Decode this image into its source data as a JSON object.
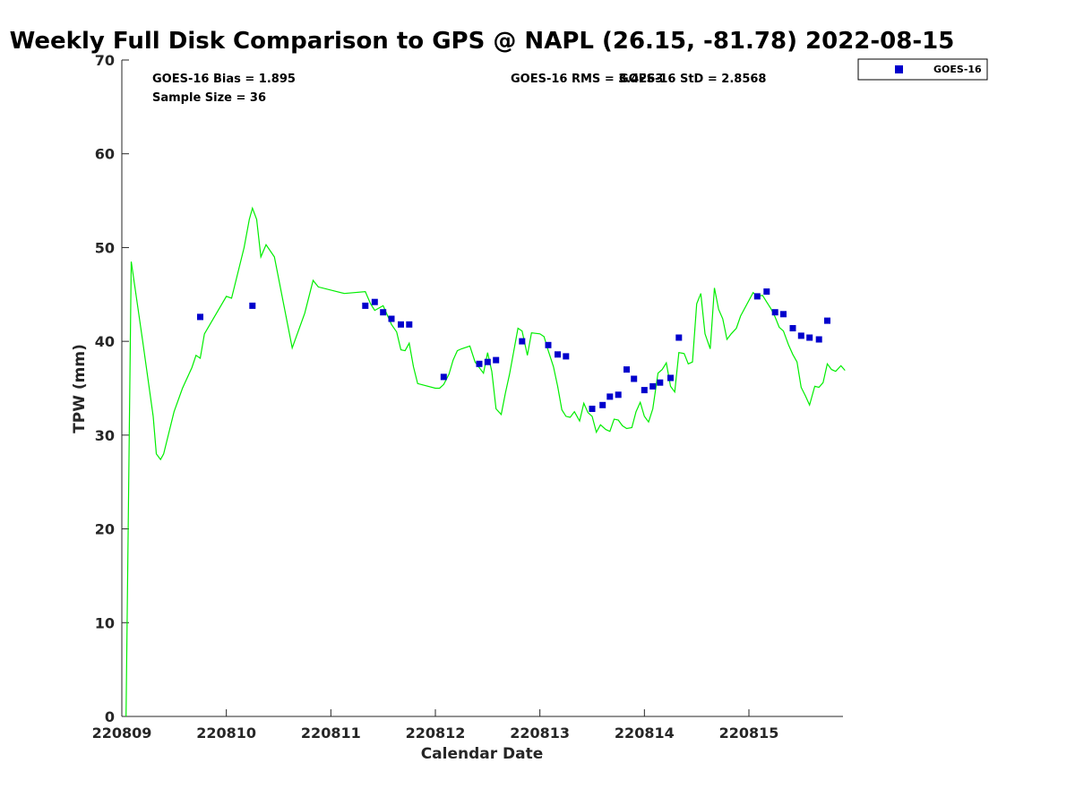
{
  "chart_data": {
    "type": "scatter",
    "title": "Weekly Full Disk Comparison to GPS @ NAPL (26.15, -81.78) 2022-08-15",
    "xlabel": "Calendar Date",
    "ylabel": "TPW (mm)",
    "xlim": [
      220809,
      220815.9
    ],
    "ylim": [
      0,
      70
    ],
    "x_ticks": [
      {
        "value": 220809,
        "label": "220809"
      },
      {
        "value": 220810,
        "label": "220810"
      },
      {
        "value": 220811,
        "label": "220811"
      },
      {
        "value": 220812,
        "label": "220812"
      },
      {
        "value": 220813,
        "label": "220813"
      },
      {
        "value": 220814,
        "label": "220814"
      },
      {
        "value": 220815,
        "label": "220815"
      }
    ],
    "y_ticks": [
      0,
      10,
      20,
      30,
      40,
      50,
      60,
      70
    ],
    "grid": false,
    "legend_position": "top-right",
    "annotations": {
      "bias": "GOES-16 Bias = 1.895",
      "sample": "Sample Size = 36",
      "rms": "GOES-16 RMS = 3.4263",
      "std": "GOES-16 StD = 2.8568"
    },
    "series": [
      {
        "name": "GOES-16",
        "kind": "scatter",
        "color": "#0000cc",
        "x": [
          220809.75,
          220810.25,
          220811.33,
          220811.42,
          220811.5,
          220811.58,
          220811.67,
          220811.75,
          220812.08,
          220812.42,
          220812.5,
          220812.58,
          220812.83,
          220813.08,
          220813.17,
          220813.25,
          220813.5,
          220813.6,
          220813.67,
          220813.75,
          220813.83,
          220813.9,
          220814.0,
          220814.08,
          220814.15,
          220814.25,
          220814.33,
          220815.08,
          220815.17,
          220815.25,
          220815.33,
          220815.42,
          220815.5,
          220815.58,
          220815.67,
          220815.75
        ],
        "y": [
          42.6,
          43.8,
          43.8,
          44.2,
          43.1,
          42.4,
          41.8,
          41.8,
          36.2,
          37.6,
          37.8,
          38.0,
          40.0,
          39.6,
          38.6,
          38.4,
          32.8,
          33.2,
          34.1,
          34.3,
          37.0,
          36.0,
          34.8,
          35.2,
          35.6,
          36.1,
          40.4,
          44.8,
          45.3,
          43.1,
          42.9,
          41.4,
          40.6,
          40.4,
          40.2,
          42.2
        ]
      },
      {
        "name": "GPS",
        "kind": "line",
        "color": "#00ee00",
        "x": [
          220809.04,
          220809.09,
          220809.2,
          220809.3,
          220809.33,
          220809.37,
          220809.4,
          220809.5,
          220809.58,
          220809.67,
          220809.71,
          220809.75,
          220809.79,
          220810.0,
          220810.05,
          220810.17,
          220810.22,
          220810.25,
          220810.29,
          220810.33,
          220810.38,
          220810.46,
          220810.63,
          220810.75,
          220810.83,
          220810.88,
          220811.13,
          220811.33,
          220811.38,
          220811.42,
          220811.5,
          220811.58,
          220811.63,
          220811.67,
          220811.71,
          220811.75,
          220811.79,
          220811.83,
          220812.0,
          220812.04,
          220812.08,
          220812.13,
          220812.17,
          220812.21,
          220812.25,
          220812.33,
          220812.38,
          220812.42,
          220812.46,
          220812.5,
          220812.54,
          220812.58,
          220812.63,
          220812.67,
          220812.71,
          220812.79,
          220812.83,
          220812.88,
          220812.92,
          220813.0,
          220813.04,
          220813.08,
          220813.13,
          220813.17,
          220813.21,
          220813.25,
          220813.29,
          220813.33,
          220813.38,
          220813.42,
          220813.46,
          220813.5,
          220813.54,
          220813.58,
          220813.63,
          220813.67,
          220813.71,
          220813.75,
          220813.79,
          220813.83,
          220813.88,
          220813.92,
          220813.96,
          220814.0,
          220814.04,
          220814.08,
          220814.13,
          220814.17,
          220814.21,
          220814.25,
          220814.29,
          220814.33,
          220814.38,
          220814.42,
          220814.46,
          220814.5,
          220814.54,
          220814.58,
          220814.63,
          220814.67,
          220814.71,
          220814.75,
          220814.79,
          220814.83,
          220814.88,
          220814.92,
          220815.04,
          220815.08,
          220815.13,
          220815.17,
          220815.21,
          220815.25,
          220815.29,
          220815.33,
          220815.38,
          220815.42,
          220815.46,
          220815.5,
          220815.54,
          220815.58,
          220815.63,
          220815.67,
          220815.71,
          220815.75,
          220815.79,
          220815.83,
          220815.88,
          220815.92
        ],
        "y": [
          0,
          48.5,
          40.0,
          32.0,
          28.0,
          27.4,
          28.0,
          32.5,
          35.0,
          37.2,
          38.5,
          38.2,
          40.8,
          44.8,
          44.6,
          50.0,
          53.0,
          54.2,
          53.0,
          49.0,
          50.3,
          49.0,
          39.3,
          43.0,
          46.5,
          45.8,
          45.1,
          45.3,
          44.0,
          43.3,
          43.8,
          41.8,
          41.0,
          39.1,
          39.0,
          39.8,
          37.3,
          35.5,
          35.0,
          35.0,
          35.4,
          36.5,
          38.0,
          39.0,
          39.2,
          39.5,
          37.8,
          37.2,
          36.6,
          38.8,
          36.8,
          32.8,
          32.2,
          34.5,
          36.5,
          41.4,
          41.1,
          38.5,
          40.9,
          40.8,
          40.5,
          39.0,
          37.3,
          35.2,
          32.7,
          32.0,
          31.9,
          32.5,
          31.5,
          33.4,
          32.4,
          32.0,
          30.3,
          31.1,
          30.6,
          30.4,
          31.7,
          31.6,
          31.0,
          30.7,
          30.8,
          32.5,
          33.5,
          32.0,
          31.4,
          32.8,
          36.6,
          37.0,
          37.7,
          35.2,
          34.6,
          38.8,
          38.7,
          37.6,
          37.8,
          44.0,
          45.1,
          40.8,
          39.2,
          45.7,
          43.4,
          42.4,
          40.2,
          40.8,
          41.4,
          42.7,
          45.2,
          44.8,
          44.9,
          44.2,
          43.5,
          42.6,
          41.5,
          41.1,
          39.6,
          38.6,
          37.8,
          35.1,
          34.2,
          33.2,
          35.2,
          35.1,
          35.6,
          37.6,
          37.0,
          36.8,
          37.4,
          36.9
        ]
      }
    ]
  }
}
